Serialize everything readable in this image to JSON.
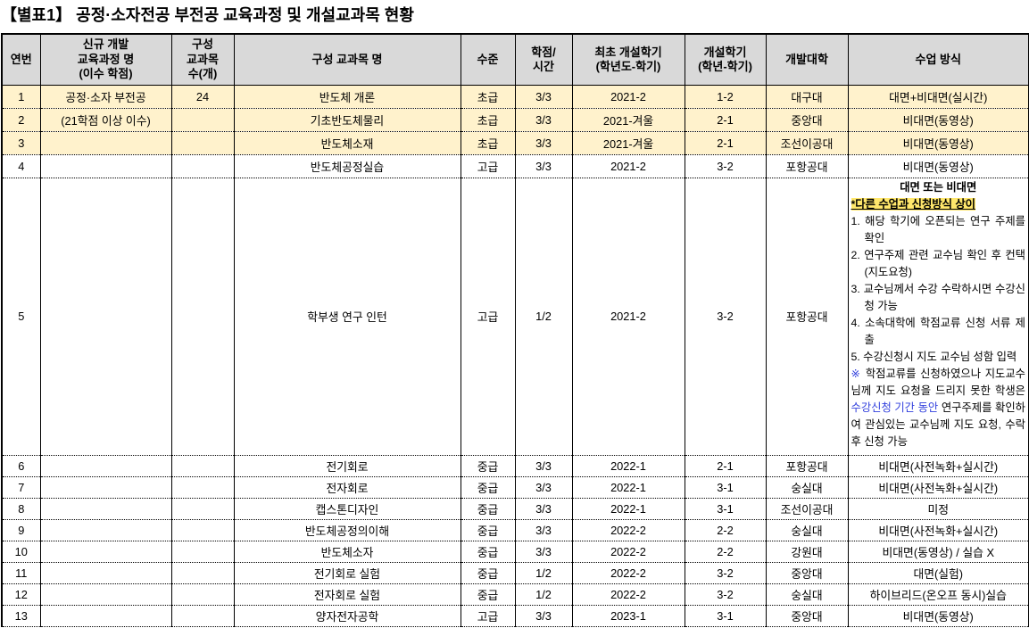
{
  "title": "【별표1】 공정·소자전공 부전공 교육과정 및 개설교과목 현황",
  "colors": {
    "header_bg": "#D9D9D9",
    "highlight_row_bg": "#FFF2CC",
    "marked_text_bg": "#FFE76B",
    "emphasis_blue": "#3240DD",
    "border": "#000000"
  },
  "table": {
    "headers": [
      "연번",
      "신규 개발\n교육과정 명\n(이수 학점)",
      "구성\n교과목\n수(개)",
      "구성 교과목 명",
      "수준",
      "학점/\n시간",
      "최초 개설학기\n(학년도-학기)",
      "개설학기\n(학년-학기)",
      "개발대학",
      "수업 방식"
    ],
    "rows": [
      {
        "no": "1",
        "program": "공정·소자 부전공",
        "count": "24",
        "course": "반도체 개론",
        "level": "초급",
        "credit_hours": "3/3",
        "first_semester": "2021-2",
        "offered_semester": "1-2",
        "university": "대구대",
        "method": "대면+비대면(실시간)",
        "highlight": true,
        "tall": false
      },
      {
        "no": "2",
        "program": "(21학점 이상 이수)",
        "count": "",
        "course": "기초반도체물리",
        "level": "초급",
        "credit_hours": "3/3",
        "first_semester": "2021-겨울",
        "offered_semester": "2-1",
        "university": "중앙대",
        "method": "비대면(동영상)",
        "highlight": true,
        "tall": false
      },
      {
        "no": "3",
        "program": "",
        "count": "",
        "course": "반도체소재",
        "level": "초급",
        "credit_hours": "3/3",
        "first_semester": "2021-겨울",
        "offered_semester": "2-1",
        "university": "조선이공대",
        "method": "비대면(동영상)",
        "highlight": true,
        "tall": false
      },
      {
        "no": "4",
        "program": "",
        "count": "",
        "course": "반도체공정실습",
        "level": "고급",
        "credit_hours": "3/3",
        "first_semester": "2021-2",
        "offered_semester": "3-2",
        "university": "포항공대",
        "method": "비대면(동영상)",
        "highlight": false,
        "tall": false
      },
      {
        "no": "5",
        "program": "",
        "count": "",
        "course": "학부생 연구 인턴",
        "level": "고급",
        "credit_hours": "1/2",
        "first_semester": "2021-2",
        "offered_semester": "3-2",
        "university": "포항공대",
        "method": null,
        "highlight": false,
        "tall": true
      },
      {
        "no": "6",
        "program": "",
        "count": "",
        "course": "전기회로",
        "level": "중급",
        "credit_hours": "3/3",
        "first_semester": "2022-1",
        "offered_semester": "2-1",
        "university": "포항공대",
        "method": "비대면(사전녹화+실시간)",
        "highlight": false,
        "tall": false
      },
      {
        "no": "7",
        "program": "",
        "count": "",
        "course": "전자회로",
        "level": "중급",
        "credit_hours": "3/3",
        "first_semester": "2022-1",
        "offered_semester": "3-1",
        "university": "숭실대",
        "method": "비대면(사전녹화+실시간)",
        "highlight": false,
        "tall": false
      },
      {
        "no": "8",
        "program": "",
        "count": "",
        "course": "캡스톤디자인",
        "level": "중급",
        "credit_hours": "3/3",
        "first_semester": "2022-1",
        "offered_semester": "3-1",
        "university": "조선이공대",
        "method": "미정",
        "highlight": false,
        "tall": false
      },
      {
        "no": "9",
        "program": "",
        "count": "",
        "course": "반도체공정의이해",
        "level": "중급",
        "credit_hours": "3/3",
        "first_semester": "2022-2",
        "offered_semester": "2-2",
        "university": "숭실대",
        "method": "비대면(사전녹화+실시간)",
        "highlight": false,
        "tall": false
      },
      {
        "no": "10",
        "program": "",
        "count": "",
        "course": "반도체소자",
        "level": "중급",
        "credit_hours": "3/3",
        "first_semester": "2022-2",
        "offered_semester": "2-2",
        "university": "강원대",
        "method": "비대면(동영상) / 실습 X",
        "highlight": false,
        "tall": false
      },
      {
        "no": "11",
        "program": "",
        "count": "",
        "course": "전기회로 실험",
        "level": "중급",
        "credit_hours": "1/2",
        "first_semester": "2022-2",
        "offered_semester": "3-2",
        "university": "중앙대",
        "method": "대면(실험)",
        "highlight": false,
        "tall": false
      },
      {
        "no": "12",
        "program": "",
        "count": "",
        "course": "전자회로 실험",
        "level": "중급",
        "credit_hours": "1/2",
        "first_semester": "2022-2",
        "offered_semester": "3-2",
        "university": "숭실대",
        "method": "하이브리드(온오프 동시)실습",
        "highlight": false,
        "tall": false
      },
      {
        "no": "13",
        "program": "",
        "count": "",
        "course": "양자전자공학",
        "level": "고급",
        "credit_hours": "3/3",
        "first_semester": "2023-1",
        "offered_semester": "3-1",
        "university": "중앙대",
        "method": "비대면(동영상)",
        "highlight": false,
        "tall": false
      }
    ],
    "special_method": {
      "title_line": "대면 또는 비대면",
      "marked_line": "*다른 수업과 신청방식 상이",
      "steps": [
        "1. 해당 학기에 오픈되는 연구 주제를 확인",
        "2. 연구주제 관련 교수님 확인 후 컨택(지도요청)",
        "3. 교수님께서 수강 수락하시면 수강신청 가능",
        "4. 소속대학에 학점교류 신청 서류 제출",
        "5. 수강신청시 지도 교수님 성함 입력"
      ],
      "note": {
        "marker": "※",
        "text_before": " 학점교류를 신청하였으나 지도교수님께 지도 요청을 드리지 못한 학생은 ",
        "blue_text": "수강신청 기간 동안",
        "text_after": " 연구주제를 확인하여 관심있는 교수님께 지도 요청, 수락 후 신청 가능"
      }
    }
  }
}
